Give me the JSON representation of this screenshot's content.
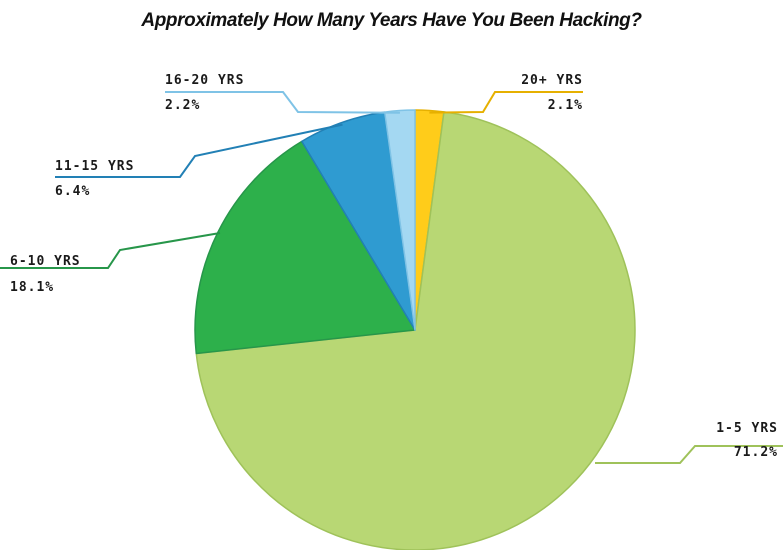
{
  "chart_data": {
    "type": "pie",
    "title": "Approximately How Many Years Have You Been Hacking?",
    "start": "12 o'clock",
    "direction": "clockwise",
    "slices": [
      {
        "label": "1-5 YRS",
        "pct_label": "71.2%",
        "value": 71.2,
        "color": "#b8d774",
        "stroke": "#9fc25a",
        "label_side": "right"
      },
      {
        "label": "6-10 YRS",
        "pct_label": "18.1%",
        "value": 18.1,
        "color": "#2db04b",
        "stroke": "#27964a",
        "label_side": "left"
      },
      {
        "label": "11-15 YRS",
        "pct_label": "6.4%",
        "value": 6.4,
        "color": "#2f9bd1",
        "stroke": "#2280b5",
        "label_side": "left"
      },
      {
        "label": "16-20 YRS",
        "pct_label": "2.2%",
        "value": 2.2,
        "color": "#a4d8f2",
        "stroke": "#7fc3e6",
        "label_side": "left"
      },
      {
        "label": "20+ YRS",
        "pct_label": "2.1%",
        "value": 2.1,
        "color": "#ffcc1a",
        "stroke": "#e6b000",
        "label_side": "right"
      }
    ]
  }
}
